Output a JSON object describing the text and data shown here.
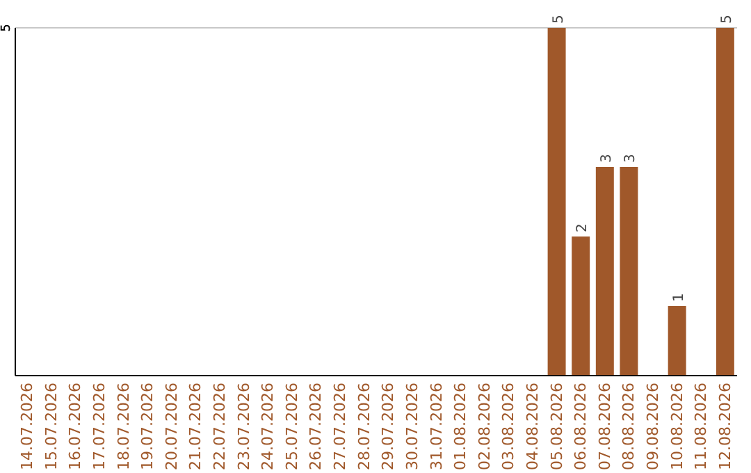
{
  "chart_data": {
    "type": "bar",
    "categories": [
      "14.07.2026",
      "15.07.2026",
      "16.07.2026",
      "17.07.2026",
      "18.07.2026",
      "19.07.2026",
      "20.07.2026",
      "21.07.2026",
      "22.07.2026",
      "23.07.2026",
      "24.07.2026",
      "25.07.2026",
      "26.07.2026",
      "27.07.2026",
      "28.07.2026",
      "29.07.2026",
      "30.07.2026",
      "31.07.2026",
      "01.08.2026",
      "02.08.2026",
      "03.08.2026",
      "04.08.2026",
      "05.08.2026",
      "06.08.2026",
      "07.08.2026",
      "08.08.2026",
      "09.08.2026",
      "10.08.2026",
      "11.08.2026",
      "12.08.2026"
    ],
    "values": [
      null,
      null,
      null,
      null,
      null,
      null,
      null,
      null,
      null,
      null,
      null,
      null,
      null,
      null,
      null,
      null,
      null,
      null,
      null,
      null,
      null,
      null,
      5,
      2,
      3,
      3,
      null,
      1,
      null,
      5
    ],
    "value_labels": [
      null,
      null,
      null,
      null,
      null,
      null,
      null,
      null,
      null,
      null,
      null,
      null,
      null,
      null,
      null,
      null,
      null,
      null,
      null,
      null,
      null,
      null,
      "5",
      "2",
      "3",
      "3",
      null,
      "1",
      null,
      "5"
    ],
    "color": "#a0582a",
    "ref_lines": [
      {
        "axis": "y",
        "value": 5,
        "label": "5",
        "color": "#c8c8c8"
      }
    ]
  }
}
